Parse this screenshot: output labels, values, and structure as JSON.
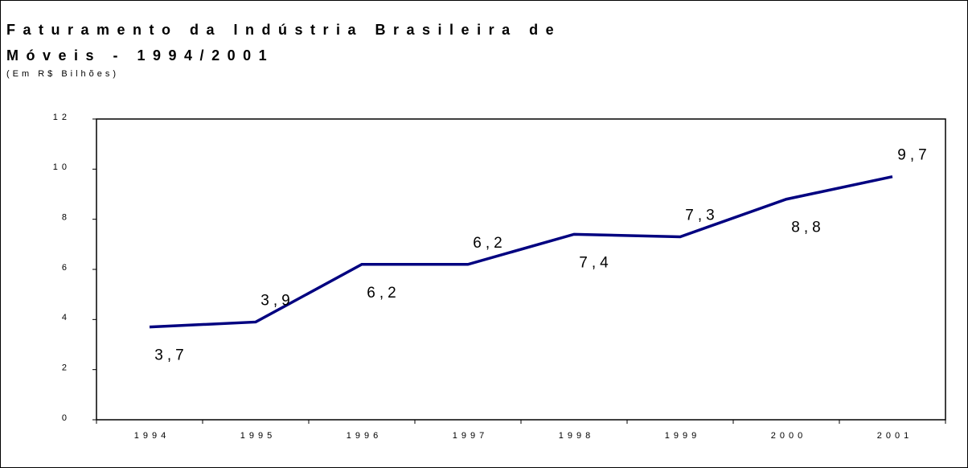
{
  "chart_data": {
    "type": "line",
    "title": [
      "Faturamento da Indústria Brasileira de",
      "Móveis - 1994/2001"
    ],
    "subtitle": "(Em R$ Bilhões)",
    "categories": [
      "1994",
      "1995",
      "1996",
      "1997",
      "1998",
      "1999",
      "2000",
      "2001"
    ],
    "series": [
      {
        "name": "Faturamento",
        "color": "#000080",
        "values": [
          3.7,
          3.9,
          6.2,
          6.2,
          7.4,
          7.3,
          8.8,
          9.7
        ],
        "value_labels": [
          "3,7",
          "3,9",
          "6,2",
          "6,2",
          "7,4",
          "7,3",
          "8,8",
          "9,7"
        ]
      }
    ],
    "ylim": [
      0,
      12
    ],
    "yticks": [
      0,
      2,
      4,
      6,
      8,
      10,
      12
    ],
    "grid": false
  }
}
